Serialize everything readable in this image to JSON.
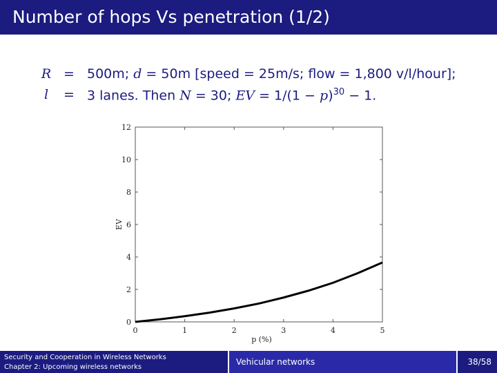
{
  "slide": {
    "title": "Number of hops Vs penetration (1/2)",
    "colors": {
      "title_bar": "#1b1b80",
      "footer_mid": "#2a2aa8",
      "text": "#1b1b80"
    }
  },
  "equations": {
    "row1": {
      "lhs": "R",
      "op": "=",
      "rhs_a": "500m; ",
      "rhs_d": "d",
      "rhs_b": " = 50m [speed = 25m/s; flow = 1,800 v/l/hour];"
    },
    "row2": {
      "lhs": "l",
      "op": "=",
      "rhs_a": "3 lanes.  Then ",
      "rhs_N": "N",
      "rhs_b": " = 30; ",
      "rhs_EV": "EV",
      "rhs_c": " = 1/(1 − ",
      "rhs_p": "p",
      "rhs_d": ")",
      "rhs_exp": "30",
      "rhs_e": " − 1."
    }
  },
  "chart_data": {
    "type": "line",
    "title": "",
    "xlabel": "p (%)",
    "ylabel": "EV",
    "xlim": [
      0,
      5
    ],
    "ylim": [
      0,
      12
    ],
    "x_ticks": [
      "0",
      "1",
      "2",
      "3",
      "4",
      "5"
    ],
    "y_ticks": [
      "0",
      "2",
      "4",
      "6",
      "8",
      "10",
      "12"
    ],
    "grid": false,
    "series": [
      {
        "color": "#000000",
        "x": [
          0,
          0.5,
          1,
          1.5,
          2,
          2.5,
          3,
          3.5,
          4,
          4.5,
          5
        ],
        "y": [
          0,
          0.16,
          0.35,
          0.57,
          0.83,
          1.13,
          1.5,
          1.92,
          2.41,
          3.0,
          3.66
        ]
      }
    ]
  },
  "footer": {
    "line1": "Security and Cooperation in Wireless Networks",
    "line2": "Chapter 2: Upcoming wireless networks",
    "section": "Vehicular networks",
    "page": "38/58"
  }
}
